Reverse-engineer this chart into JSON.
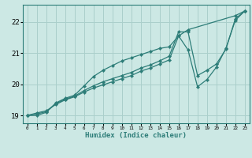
{
  "xlabel": "Humidex (Indice chaleur)",
  "ylabel": "",
  "bg_color": "#cce8e4",
  "line_color": "#2d7d78",
  "grid_color": "#aacfcb",
  "xlim": [
    -0.5,
    23.5
  ],
  "ylim": [
    18.75,
    22.55
  ],
  "xticks": [
    0,
    1,
    2,
    3,
    4,
    5,
    6,
    7,
    8,
    9,
    10,
    11,
    12,
    13,
    14,
    15,
    16,
    17,
    18,
    19,
    20,
    21,
    22,
    23
  ],
  "yticks": [
    19,
    20,
    21,
    22
  ],
  "lines": [
    {
      "x": [
        0,
        1,
        2,
        3,
        4,
        5,
        6,
        7,
        8,
        9,
        10,
        11,
        12,
        13,
        14,
        15,
        16,
        17,
        22,
        23
      ],
      "y": [
        19.0,
        19.0,
        19.1,
        19.4,
        19.55,
        19.65,
        19.95,
        20.25,
        20.45,
        20.6,
        20.75,
        20.85,
        20.95,
        21.05,
        21.15,
        21.2,
        21.55,
        21.75,
        22.2,
        22.35
      ]
    },
    {
      "x": [
        0,
        1,
        2,
        3,
        4,
        5,
        6,
        7,
        8,
        9,
        10,
        11,
        12,
        13,
        14,
        15,
        16,
        17,
        18,
        19,
        20,
        21,
        22,
        23
      ],
      "y": [
        19.0,
        19.08,
        19.15,
        19.35,
        19.5,
        19.6,
        19.75,
        19.88,
        19.98,
        20.08,
        20.18,
        20.28,
        20.42,
        20.52,
        20.65,
        20.78,
        21.55,
        21.1,
        19.92,
        20.15,
        20.55,
        21.15,
        22.05,
        22.35
      ]
    },
    {
      "x": [
        0,
        1,
        2,
        3,
        4,
        5,
        6,
        7,
        8,
        9,
        10,
        11,
        12,
        13,
        14,
        15,
        16,
        17,
        18,
        19,
        20,
        21,
        22,
        23
      ],
      "y": [
        19.0,
        19.05,
        19.12,
        19.38,
        19.52,
        19.62,
        19.8,
        19.95,
        20.08,
        20.18,
        20.28,
        20.38,
        20.52,
        20.62,
        20.75,
        20.9,
        21.68,
        21.68,
        20.28,
        20.45,
        20.65,
        21.12,
        22.1,
        22.35
      ]
    }
  ]
}
